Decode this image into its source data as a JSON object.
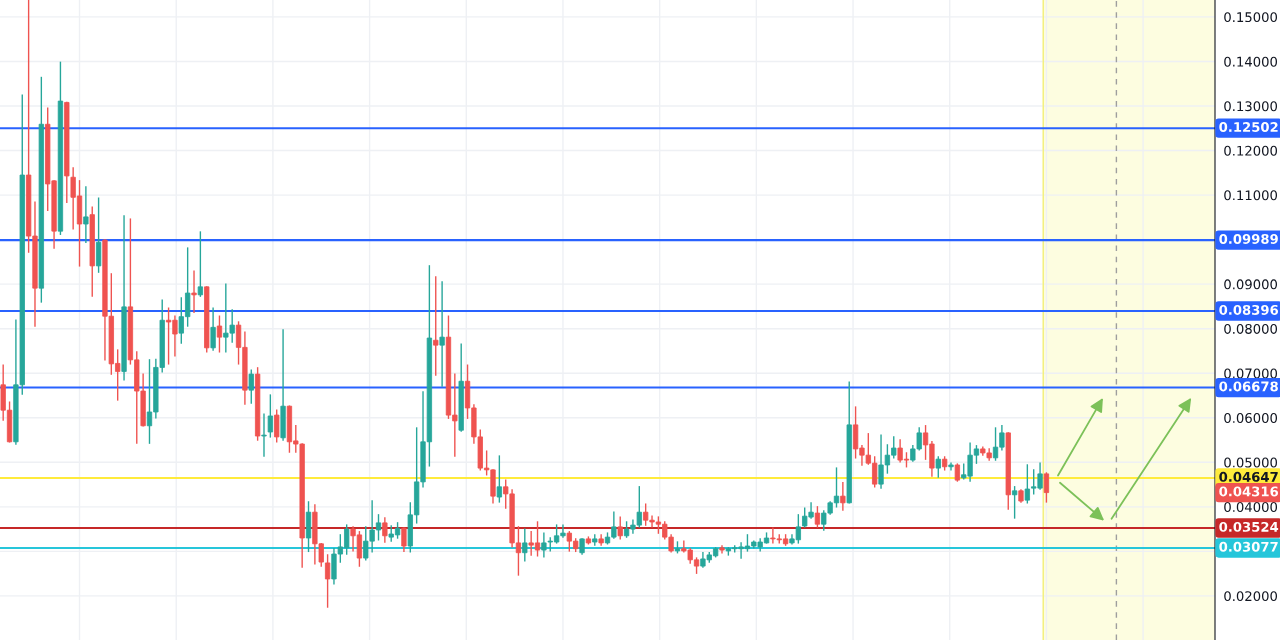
{
  "chart_data": {
    "type": "candlestick",
    "categories": [
      null,
      null,
      null,
      null,
      null,
      null,
      null,
      null,
      null,
      null,
      null,
      null,
      null,
      null,
      null,
      null,
      null,
      null,
      null,
      null,
      null,
      null,
      null,
      null,
      null,
      null,
      null,
      null,
      null,
      null,
      null,
      null,
      null,
      null,
      null,
      null,
      null,
      null,
      null,
      null,
      null,
      null,
      null,
      null,
      null,
      null,
      null,
      null,
      null,
      null,
      null,
      null,
      null,
      null,
      null,
      null,
      null,
      null,
      null,
      null,
      null,
      null,
      null,
      null,
      null,
      null,
      null,
      null,
      null,
      null,
      null,
      null,
      null,
      null,
      null,
      null,
      null,
      null,
      null,
      null,
      null,
      null,
      null,
      null,
      null,
      null,
      null,
      null,
      null,
      null,
      null,
      null,
      null,
      null,
      null,
      null,
      null,
      null,
      null,
      null,
      null,
      null,
      null,
      null,
      null,
      null,
      null,
      null,
      null,
      null,
      null,
      null,
      null,
      null,
      null,
      null,
      null,
      null,
      null,
      null,
      null,
      null,
      null,
      null,
      null,
      null,
      null,
      null,
      null,
      null,
      null,
      null,
      null,
      null,
      null,
      null,
      null,
      null,
      null,
      null,
      null,
      null,
      null,
      null,
      null,
      null,
      null,
      null,
      null,
      null,
      null,
      null,
      null,
      null,
      null,
      null,
      null,
      null,
      null,
      null,
      null,
      null,
      null,
      null,
      null,
      null,
      null,
      null,
      null,
      null,
      null,
      null,
      null,
      null,
      null,
      null,
      null,
      null,
      null,
      null,
      null,
      null,
      null,
      null,
      null,
      null,
      null,
      null,
      null,
      null,
      null
    ],
    "ohlc": [
      [
        0.0674,
        0.0718,
        0.0595,
        0.0617
      ],
      [
        0.0617,
        0.0635,
        0.0546,
        0.0546
      ],
      [
        0.0546,
        0.0819,
        0.0541,
        0.0674
      ],
      [
        0.0674,
        0.1324,
        0.0653,
        0.1145
      ],
      [
        0.1145,
        0.1537,
        0.0972,
        0.1008
      ],
      [
        0.1008,
        0.1084,
        0.0806,
        0.0891
      ],
      [
        0.0891,
        0.1364,
        0.086,
        0.1259
      ],
      [
        0.1259,
        0.1295,
        0.1066,
        0.1125
      ],
      [
        0.1132,
        0.1132,
        0.0981,
        0.1019
      ],
      [
        0.1019,
        0.1398,
        0.1012,
        0.1311
      ],
      [
        0.1308,
        0.1308,
        0.1084,
        0.1143
      ],
      [
        0.114,
        0.1161,
        0.1024,
        0.1095
      ],
      [
        0.1098,
        0.1132,
        0.0941,
        0.1035
      ],
      [
        0.1035,
        0.1118,
        0.0994,
        0.1051
      ],
      [
        0.1056,
        0.1073,
        0.0873,
        0.0941
      ],
      [
        0.0941,
        0.1093,
        0.0927,
        0.0994
      ],
      [
        0.0999,
        0.0999,
        0.073,
        0.0828
      ],
      [
        0.0828,
        0.0923,
        0.0698,
        0.0721
      ],
      [
        0.0722,
        0.0752,
        0.064,
        0.0704
      ],
      [
        0.0704,
        0.1053,
        0.0685,
        0.0849
      ],
      [
        0.0849,
        0.1046,
        0.0721,
        0.073
      ],
      [
        0.073,
        0.0748,
        0.0543,
        0.066
      ],
      [
        0.066,
        0.0698,
        0.0582,
        0.0582
      ],
      [
        0.0582,
        0.073,
        0.0543,
        0.0613
      ],
      [
        0.0613,
        0.0731,
        0.06,
        0.0713
      ],
      [
        0.0713,
        0.0864,
        0.0703,
        0.0819
      ],
      [
        0.0819,
        0.0846,
        0.0721,
        0.0815
      ],
      [
        0.0819,
        0.0828,
        0.0739,
        0.0788
      ],
      [
        0.079,
        0.0869,
        0.0768,
        0.0827
      ],
      [
        0.0827,
        0.0981,
        0.0806,
        0.088
      ],
      [
        0.088,
        0.0929,
        0.0837,
        0.0876
      ],
      [
        0.0876,
        0.1017,
        0.0873,
        0.0894
      ],
      [
        0.0894,
        0.0894,
        0.0748,
        0.0757
      ],
      [
        0.0757,
        0.0846,
        0.0752,
        0.0803
      ],
      [
        0.0806,
        0.0828,
        0.0748,
        0.0781
      ],
      [
        0.0781,
        0.09,
        0.0748,
        0.079
      ],
      [
        0.079,
        0.0842,
        0.077,
        0.0808
      ],
      [
        0.0808,
        0.0815,
        0.0721,
        0.0758
      ],
      [
        0.0758,
        0.0792,
        0.0631,
        0.0662
      ],
      [
        0.0662,
        0.0707,
        0.0633,
        0.0698
      ],
      [
        0.0698,
        0.0712,
        0.055,
        0.0559
      ],
      [
        0.0559,
        0.0608,
        0.0514,
        0.0561
      ],
      [
        0.0568,
        0.0651,
        0.0557,
        0.0604
      ],
      [
        0.0606,
        0.0617,
        0.0546,
        0.0557
      ],
      [
        0.0555,
        0.0797,
        0.055,
        0.0626
      ],
      [
        0.0626,
        0.0626,
        0.0523,
        0.0546
      ],
      [
        0.0548,
        0.0582,
        0.0523,
        0.0541
      ],
      [
        0.0541,
        0.0541,
        0.0265,
        0.033
      ],
      [
        0.033,
        0.0411,
        0.03,
        0.0388
      ],
      [
        0.0388,
        0.0404,
        0.0272,
        0.0317
      ],
      [
        0.0317,
        0.0317,
        0.0267,
        0.0276
      ],
      [
        0.0274,
        0.0292,
        0.0175,
        0.0238
      ],
      [
        0.0238,
        0.0306,
        0.0227,
        0.0294
      ],
      [
        0.0294,
        0.0337,
        0.0276,
        0.031
      ],
      [
        0.0308,
        0.0359,
        0.0294,
        0.035
      ],
      [
        0.035,
        0.0355,
        0.0301,
        0.0335
      ],
      [
        0.0337,
        0.0344,
        0.0267,
        0.0285
      ],
      [
        0.0285,
        0.0355,
        0.0281,
        0.0323
      ],
      [
        0.0323,
        0.0413,
        0.0299,
        0.0348
      ],
      [
        0.0348,
        0.0382,
        0.0326,
        0.0364
      ],
      [
        0.0364,
        0.0375,
        0.0321,
        0.0335
      ],
      [
        0.0332,
        0.0357,
        0.0323,
        0.0339
      ],
      [
        0.0337,
        0.0364,
        0.033,
        0.0352
      ],
      [
        0.0352,
        0.0352,
        0.03,
        0.0312
      ],
      [
        0.0312,
        0.0409,
        0.0299,
        0.0382
      ],
      [
        0.0382,
        0.0577,
        0.0364,
        0.0456
      ],
      [
        0.0456,
        0.0658,
        0.0445,
        0.0546
      ],
      [
        0.0546,
        0.0941,
        0.0492,
        0.0779
      ],
      [
        0.0774,
        0.0916,
        0.0696,
        0.0763
      ],
      [
        0.0763,
        0.0905,
        0.0671,
        0.0781
      ],
      [
        0.0781,
        0.0828,
        0.0599,
        0.0606
      ],
      [
        0.0606,
        0.0698,
        0.0514,
        0.0593
      ],
      [
        0.0572,
        0.0765,
        0.057,
        0.0682
      ],
      [
        0.0682,
        0.0718,
        0.0599,
        0.0622
      ],
      [
        0.0622,
        0.0629,
        0.0543,
        0.0557
      ],
      [
        0.0557,
        0.0572,
        0.0483,
        0.0487
      ],
      [
        0.0487,
        0.0525,
        0.0472,
        0.0483
      ],
      [
        0.0483,
        0.0483,
        0.0409,
        0.0424
      ],
      [
        0.0422,
        0.0514,
        0.0411,
        0.0445
      ],
      [
        0.0445,
        0.046,
        0.0397,
        0.0429
      ],
      [
        0.0429,
        0.0438,
        0.031,
        0.0319
      ],
      [
        0.0319,
        0.0355,
        0.0247,
        0.0297
      ],
      [
        0.0297,
        0.035,
        0.0279,
        0.0319
      ],
      [
        0.0319,
        0.0344,
        0.0292,
        0.0314
      ],
      [
        0.0319,
        0.0366,
        0.029,
        0.0303
      ],
      [
        0.0303,
        0.0341,
        0.0288,
        0.0319
      ],
      [
        0.0321,
        0.033,
        0.0301,
        0.0323
      ],
      [
        0.0321,
        0.0359,
        0.0319,
        0.0335
      ],
      [
        0.0335,
        0.0359,
        0.0332,
        0.0341
      ],
      [
        0.0341,
        0.0344,
        0.0301,
        0.0323
      ],
      [
        0.0323,
        0.0328,
        0.03,
        0.0306
      ],
      [
        0.0297,
        0.0328,
        0.0294,
        0.0328
      ],
      [
        0.0328,
        0.0332,
        0.0317,
        0.0319
      ],
      [
        0.0321,
        0.0337,
        0.0314,
        0.0328
      ],
      [
        0.0328,
        0.0337,
        0.0314,
        0.0319
      ],
      [
        0.0319,
        0.0341,
        0.0317,
        0.0332
      ],
      [
        0.0332,
        0.0388,
        0.033,
        0.0355
      ],
      [
        0.0355,
        0.0377,
        0.0328,
        0.0335
      ],
      [
        0.0335,
        0.0366,
        0.0332,
        0.035
      ],
      [
        0.035,
        0.037,
        0.0341,
        0.0359
      ],
      [
        0.0359,
        0.0445,
        0.0355,
        0.0388
      ],
      [
        0.0388,
        0.0406,
        0.0359,
        0.037
      ],
      [
        0.037,
        0.0379,
        0.0355,
        0.0366
      ],
      [
        0.0366,
        0.0377,
        0.0341,
        0.0361
      ],
      [
        0.0361,
        0.0366,
        0.0328,
        0.0332
      ],
      [
        0.0332,
        0.0337,
        0.0299,
        0.0301
      ],
      [
        0.0301,
        0.0321,
        0.0297,
        0.0306
      ],
      [
        0.0306,
        0.0323,
        0.0299,
        0.0301
      ],
      [
        0.0303,
        0.0306,
        0.0274,
        0.0281
      ],
      [
        0.0281,
        0.0285,
        0.0251,
        0.0267
      ],
      [
        0.0267,
        0.0297,
        0.0265,
        0.0283
      ],
      [
        0.0281,
        0.0297,
        0.0276,
        0.0292
      ],
      [
        0.029,
        0.0308,
        0.0288,
        0.0306
      ],
      [
        0.0308,
        0.0312,
        0.0297,
        0.0303
      ],
      [
        0.0301,
        0.0308,
        0.0292,
        0.0306
      ],
      [
        0.0306,
        0.0312,
        0.0299,
        0.0308
      ],
      [
        0.0306,
        0.0319,
        0.0285,
        0.031
      ],
      [
        0.0306,
        0.0337,
        0.0301,
        0.0312
      ],
      [
        0.0312,
        0.0323,
        0.0308,
        0.0321
      ],
      [
        0.031,
        0.0328,
        0.0301,
        0.0321
      ],
      [
        0.0319,
        0.0341,
        0.0319,
        0.033
      ],
      [
        0.033,
        0.0352,
        0.0319,
        0.0328
      ],
      [
        0.0328,
        0.0337,
        0.0319,
        0.0326
      ],
      [
        0.0328,
        0.0337,
        0.0314,
        0.0317
      ],
      [
        0.0319,
        0.0337,
        0.0317,
        0.0328
      ],
      [
        0.0326,
        0.0382,
        0.0319,
        0.0355
      ],
      [
        0.0357,
        0.0397,
        0.0355,
        0.0379
      ],
      [
        0.0377,
        0.0409,
        0.0375,
        0.0388
      ],
      [
        0.0386,
        0.04,
        0.0355,
        0.0361
      ],
      [
        0.0361,
        0.0391,
        0.0348,
        0.0386
      ],
      [
        0.0386,
        0.0411,
        0.0384,
        0.0409
      ],
      [
        0.0409,
        0.0487,
        0.04,
        0.0424
      ],
      [
        0.0424,
        0.0454,
        0.0393,
        0.0409
      ],
      [
        0.0409,
        0.068,
        0.0409,
        0.0584
      ],
      [
        0.0584,
        0.0624,
        0.051,
        0.053
      ],
      [
        0.0532,
        0.0537,
        0.0494,
        0.0516
      ],
      [
        0.0516,
        0.0564,
        0.0496,
        0.0498
      ],
      [
        0.0498,
        0.0512,
        0.0445,
        0.0451
      ],
      [
        0.0451,
        0.0561,
        0.0442,
        0.0494
      ],
      [
        0.0494,
        0.0539,
        0.0476,
        0.0516
      ],
      [
        0.0516,
        0.0557,
        0.051,
        0.0532
      ],
      [
        0.0532,
        0.055,
        0.0501,
        0.0505
      ],
      [
        0.0507,
        0.0521,
        0.049,
        0.0505
      ],
      [
        0.0505,
        0.0537,
        0.0503,
        0.053
      ],
      [
        0.053,
        0.0577,
        0.0528,
        0.0566
      ],
      [
        0.0566,
        0.0582,
        0.0507,
        0.0539
      ],
      [
        0.0541,
        0.0546,
        0.0469,
        0.0487
      ],
      [
        0.0487,
        0.0512,
        0.0467,
        0.0507
      ],
      [
        0.0507,
        0.0512,
        0.0483,
        0.049
      ],
      [
        0.049,
        0.0498,
        0.0483,
        0.0494
      ],
      [
        0.0494,
        0.0496,
        0.0458,
        0.046
      ],
      [
        0.0465,
        0.0496,
        0.0463,
        0.0472
      ],
      [
        0.0469,
        0.0543,
        0.0458,
        0.0516
      ],
      [
        0.0516,
        0.0537,
        0.0498,
        0.053
      ],
      [
        0.053,
        0.0534,
        0.0516,
        0.0521
      ],
      [
        0.0521,
        0.053,
        0.0505,
        0.051
      ],
      [
        0.051,
        0.0577,
        0.0505,
        0.0534
      ],
      [
        0.0534,
        0.0582,
        0.0528,
        0.0566
      ],
      [
        0.0566,
        0.0566,
        0.0395,
        0.0427
      ],
      [
        0.0427,
        0.0445,
        0.0375,
        0.0436
      ],
      [
        0.0436,
        0.0438,
        0.0411,
        0.0413
      ],
      [
        0.0415,
        0.0494,
        0.0409,
        0.044
      ],
      [
        0.0442,
        0.0483,
        0.0429,
        0.0445
      ],
      [
        0.0442,
        0.0498,
        0.044,
        0.0474
      ],
      [
        0.0474,
        0.0476,
        0.0411,
        0.0432
      ],
      null,
      null,
      null,
      null,
      null,
      null,
      null,
      null,
      null,
      null,
      null,
      null,
      null,
      null,
      null,
      null,
      null,
      null,
      null,
      null,
      null,
      null,
      null,
      null,
      null,
      null
    ],
    "ylim": [
      0.0101,
      0.1538
    ],
    "yticks": [
      {
        "value": 0.02,
        "label": "0.02000"
      },
      {
        "value": 0.03,
        "label": null
      },
      {
        "value": 0.04,
        "label": "0.04000"
      },
      {
        "value": 0.05,
        "label": "0.05000"
      },
      {
        "value": 0.06,
        "label": "0.06000"
      },
      {
        "value": 0.07,
        "label": "0.07000"
      },
      {
        "value": 0.08,
        "label": "0.08000"
      },
      {
        "value": 0.09,
        "label": "0.09000"
      },
      {
        "value": 0.1,
        "label": null
      },
      {
        "value": 0.11,
        "label": "0.11000"
      },
      {
        "value": 0.12,
        "label": "0.12000"
      },
      {
        "value": 0.13,
        "label": "0.13000"
      },
      {
        "value": 0.14,
        "label": "0.14000"
      },
      {
        "value": 0.15,
        "label": "0.15000"
      }
    ],
    "ref_lines": [
      {
        "axis": "y",
        "value": 0.12502,
        "label": "0.12502",
        "color": "#2962ff"
      },
      {
        "axis": "y",
        "value": 0.09989,
        "label": "0.09989",
        "color": "#2962ff"
      },
      {
        "axis": "y",
        "value": 0.08396,
        "label": "0.08396",
        "color": "#2962ff"
      },
      {
        "axis": "y",
        "value": 0.06678,
        "label": "0.06678",
        "color": "#2962ff"
      },
      {
        "axis": "y",
        "value": 0.04647,
        "label": "0.04647",
        "color": "#ffeb3b"
      },
      {
        "axis": "y",
        "value": 0.03524,
        "label": "0.03524",
        "color": "#c62828"
      },
      {
        "axis": "y",
        "value": 0.03077,
        "label": "0.03077",
        "color": "#26c6da"
      }
    ],
    "annotations": [
      "0.04316"
    ],
    "grid": true,
    "legend": false
  }
}
